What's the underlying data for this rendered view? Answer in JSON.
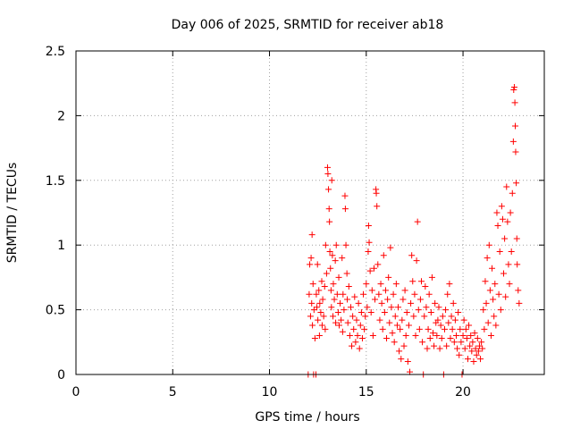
{
  "chart_data": {
    "type": "scatter",
    "title": "Day 006 of 2025, SRMTID for receiver ab18",
    "xlabel": "GPS time / hours",
    "ylabel": "SRMTID / TECUs",
    "xlim": [
      0,
      24.2
    ],
    "ylim": [
      0,
      2.5
    ],
    "xticks": [
      0,
      5,
      10,
      15,
      20
    ],
    "xtick_labels": [
      "0",
      "5",
      "10",
      "15",
      "20"
    ],
    "yticks": [
      0,
      0.5,
      1,
      1.5,
      2,
      2.5
    ],
    "ytick_labels": [
      "0",
      "0.5",
      "1",
      "1.5",
      "2",
      "2.5"
    ],
    "grid": true,
    "marker": "+",
    "color": "#ff0000",
    "series": [
      {
        "name": "SRMTID",
        "points": [
          [
            12.0,
            0.0
          ],
          [
            12.05,
            0.62
          ],
          [
            12.08,
            0.85
          ],
          [
            12.12,
            0.45
          ],
          [
            12.15,
            0.9
          ],
          [
            12.18,
            0.55
          ],
          [
            12.2,
            1.08
          ],
          [
            12.22,
            0.38
          ],
          [
            12.25,
            0.7
          ],
          [
            12.28,
            0.0
          ],
          [
            12.3,
            0.5
          ],
          [
            12.35,
            0.28
          ],
          [
            12.4,
            0.0
          ],
          [
            12.42,
            0.62
          ],
          [
            12.45,
            0.52
          ],
          [
            12.48,
            0.85
          ],
          [
            12.5,
            0.42
          ],
          [
            12.55,
            0.65
          ],
          [
            12.58,
            0.3
          ],
          [
            12.6,
            0.55
          ],
          [
            12.65,
            0.48
          ],
          [
            12.7,
            0.72
          ],
          [
            12.72,
            0.38
          ],
          [
            12.75,
            0.58
          ],
          [
            12.8,
            0.45
          ],
          [
            12.85,
            0.68
          ],
          [
            12.88,
            0.35
          ],
          [
            12.9,
            1.0
          ],
          [
            12.95,
            0.78
          ],
          [
            13.0,
            1.6
          ],
          [
            13.02,
            1.55
          ],
          [
            13.05,
            1.43
          ],
          [
            13.08,
            1.28
          ],
          [
            13.1,
            1.18
          ],
          [
            13.12,
            0.95
          ],
          [
            13.15,
            0.82
          ],
          [
            13.18,
            0.65
          ],
          [
            13.2,
            0.52
          ],
          [
            13.22,
            1.5
          ],
          [
            13.25,
            0.92
          ],
          [
            13.28,
            0.45
          ],
          [
            13.3,
            0.7
          ],
          [
            13.35,
            0.58
          ],
          [
            13.4,
            0.88
          ],
          [
            13.42,
            0.4
          ],
          [
            13.45,
            1.0
          ],
          [
            13.5,
            0.62
          ],
          [
            13.55,
            0.48
          ],
          [
            13.58,
            0.75
          ],
          [
            13.6,
            0.38
          ],
          [
            13.65,
            0.55
          ],
          [
            13.7,
            0.42
          ],
          [
            13.75,
            0.9
          ],
          [
            13.78,
            0.33
          ],
          [
            13.8,
            0.62
          ],
          [
            13.85,
            0.5
          ],
          [
            13.9,
            1.38
          ],
          [
            13.92,
            1.28
          ],
          [
            13.95,
            1.0
          ],
          [
            14.0,
            0.78
          ],
          [
            14.02,
            0.58
          ],
          [
            14.05,
            0.4
          ],
          [
            14.1,
            0.68
          ],
          [
            14.15,
            0.3
          ],
          [
            14.2,
            0.52
          ],
          [
            14.25,
            0.22
          ],
          [
            14.3,
            0.45
          ],
          [
            14.35,
            0.35
          ],
          [
            14.4,
            0.6
          ],
          [
            14.45,
            0.25
          ],
          [
            14.5,
            0.42
          ],
          [
            14.55,
            0.3
          ],
          [
            14.6,
            0.55
          ],
          [
            14.65,
            0.2
          ],
          [
            14.7,
            0.38
          ],
          [
            14.75,
            0.48
          ],
          [
            14.8,
            0.28
          ],
          [
            14.85,
            0.62
          ],
          [
            14.9,
            0.35
          ],
          [
            14.95,
            0.45
          ],
          [
            15.0,
            0.7
          ],
          [
            15.05,
            0.52
          ],
          [
            15.1,
            0.95
          ],
          [
            15.12,
            1.15
          ],
          [
            15.15,
            1.02
          ],
          [
            15.2,
            0.8
          ],
          [
            15.25,
            0.48
          ],
          [
            15.3,
            0.65
          ],
          [
            15.35,
            0.3
          ],
          [
            15.4,
            0.82
          ],
          [
            15.45,
            0.58
          ],
          [
            15.5,
            1.43
          ],
          [
            15.52,
            1.4
          ],
          [
            15.55,
            1.3
          ],
          [
            15.6,
            0.85
          ],
          [
            15.65,
            0.62
          ],
          [
            15.7,
            0.42
          ],
          [
            15.75,
            0.7
          ],
          [
            15.8,
            0.55
          ],
          [
            15.85,
            0.35
          ],
          [
            15.9,
            0.92
          ],
          [
            15.95,
            0.48
          ],
          [
            16.0,
            0.65
          ],
          [
            16.05,
            0.28
          ],
          [
            16.1,
            0.58
          ],
          [
            16.15,
            0.75
          ],
          [
            16.2,
            0.4
          ],
          [
            16.25,
            0.98
          ],
          [
            16.3,
            0.52
          ],
          [
            16.35,
            0.32
          ],
          [
            16.4,
            0.62
          ],
          [
            16.45,
            0.25
          ],
          [
            16.5,
            0.45
          ],
          [
            16.55,
            0.7
          ],
          [
            16.6,
            0.38
          ],
          [
            16.65,
            0.52
          ],
          [
            16.7,
            0.18
          ],
          [
            16.75,
            0.35
          ],
          [
            16.8,
            0.12
          ],
          [
            16.85,
            0.42
          ],
          [
            16.9,
            0.58
          ],
          [
            16.95,
            0.22
          ],
          [
            17.0,
            0.65
          ],
          [
            17.05,
            0.3
          ],
          [
            17.1,
            0.48
          ],
          [
            17.15,
            0.1
          ],
          [
            17.2,
            0.38
          ],
          [
            17.25,
            0.02
          ],
          [
            17.3,
            0.55
          ],
          [
            17.35,
            0.92
          ],
          [
            17.4,
            0.72
          ],
          [
            17.45,
            0.45
          ],
          [
            17.5,
            0.62
          ],
          [
            17.55,
            0.3
          ],
          [
            17.6,
            0.88
          ],
          [
            17.65,
            1.18
          ],
          [
            17.7,
            0.5
          ],
          [
            17.75,
            0.35
          ],
          [
            17.8,
            0.58
          ],
          [
            17.85,
            0.72
          ],
          [
            17.9,
            0.25
          ],
          [
            17.95,
            0.0
          ],
          [
            18.0,
            0.45
          ],
          [
            18.05,
            0.68
          ],
          [
            18.1,
            0.52
          ],
          [
            18.15,
            0.2
          ],
          [
            18.2,
            0.35
          ],
          [
            18.25,
            0.62
          ],
          [
            18.3,
            0.28
          ],
          [
            18.35,
            0.48
          ],
          [
            18.4,
            0.75
          ],
          [
            18.45,
            0.32
          ],
          [
            18.5,
            0.22
          ],
          [
            18.55,
            0.55
          ],
          [
            18.6,
            0.4
          ],
          [
            18.65,
            0.3
          ],
          [
            18.7,
            0.42
          ],
          [
            18.75,
            0.52
          ],
          [
            18.8,
            0.2
          ],
          [
            18.85,
            0.38
          ],
          [
            18.9,
            0.28
          ],
          [
            18.95,
            0.45
          ],
          [
            19.0,
            0.0
          ],
          [
            19.05,
            0.35
          ],
          [
            19.1,
            0.5
          ],
          [
            19.15,
            0.22
          ],
          [
            19.2,
            0.62
          ],
          [
            19.25,
            0.4
          ],
          [
            19.3,
            0.7
          ],
          [
            19.35,
            0.28
          ],
          [
            19.4,
            0.45
          ],
          [
            19.45,
            0.35
          ],
          [
            19.5,
            0.55
          ],
          [
            19.55,
            0.25
          ],
          [
            19.6,
            0.42
          ],
          [
            19.65,
            0.3
          ],
          [
            19.7,
            0.2
          ],
          [
            19.75,
            0.48
          ],
          [
            19.8,
            0.15
          ],
          [
            19.85,
            0.35
          ],
          [
            19.9,
            0.25
          ],
          [
            19.95,
            0.0
          ],
          [
            20.0,
            0.3
          ],
          [
            20.05,
            0.42
          ],
          [
            20.1,
            0.2
          ],
          [
            20.15,
            0.35
          ],
          [
            20.2,
            0.28
          ],
          [
            20.25,
            0.12
          ],
          [
            20.3,
            0.38
          ],
          [
            20.35,
            0.22
          ],
          [
            20.4,
            0.3
          ],
          [
            20.45,
            0.18
          ],
          [
            20.5,
            0.25
          ],
          [
            20.55,
            0.1
          ],
          [
            20.6,
            0.32
          ],
          [
            20.65,
            0.2
          ],
          [
            20.7,
            0.15
          ],
          [
            20.75,
            0.28
          ],
          [
            20.8,
            0.18
          ],
          [
            20.85,
            0.22
          ],
          [
            20.9,
            0.12
          ],
          [
            20.95,
            0.25
          ],
          [
            21.0,
            0.2
          ],
          [
            21.05,
            0.5
          ],
          [
            21.1,
            0.35
          ],
          [
            21.15,
            0.72
          ],
          [
            21.2,
            0.55
          ],
          [
            21.25,
            0.9
          ],
          [
            21.3,
            0.4
          ],
          [
            21.35,
            1.0
          ],
          [
            21.4,
            0.65
          ],
          [
            21.45,
            0.3
          ],
          [
            21.5,
            0.82
          ],
          [
            21.55,
            0.58
          ],
          [
            21.6,
            0.45
          ],
          [
            21.65,
            0.7
          ],
          [
            21.7,
            0.38
          ],
          [
            21.75,
            1.25
          ],
          [
            21.8,
            1.15
          ],
          [
            21.85,
            0.62
          ],
          [
            21.9,
            0.95
          ],
          [
            21.95,
            0.5
          ],
          [
            22.0,
            1.3
          ],
          [
            22.05,
            1.2
          ],
          [
            22.1,
            0.78
          ],
          [
            22.15,
            1.05
          ],
          [
            22.2,
            0.6
          ],
          [
            22.25,
            1.45
          ],
          [
            22.3,
            1.18
          ],
          [
            22.35,
            0.85
          ],
          [
            22.4,
            0.7
          ],
          [
            22.45,
            1.25
          ],
          [
            22.5,
            0.95
          ],
          [
            22.55,
            1.4
          ],
          [
            22.6,
            1.8
          ],
          [
            22.62,
            2.2
          ],
          [
            22.65,
            2.22
          ],
          [
            22.68,
            2.1
          ],
          [
            22.7,
            1.92
          ],
          [
            22.72,
            1.72
          ],
          [
            22.75,
            1.48
          ],
          [
            22.78,
            1.05
          ],
          [
            22.8,
            0.85
          ],
          [
            22.85,
            0.65
          ],
          [
            22.9,
            0.55
          ]
        ]
      }
    ]
  }
}
